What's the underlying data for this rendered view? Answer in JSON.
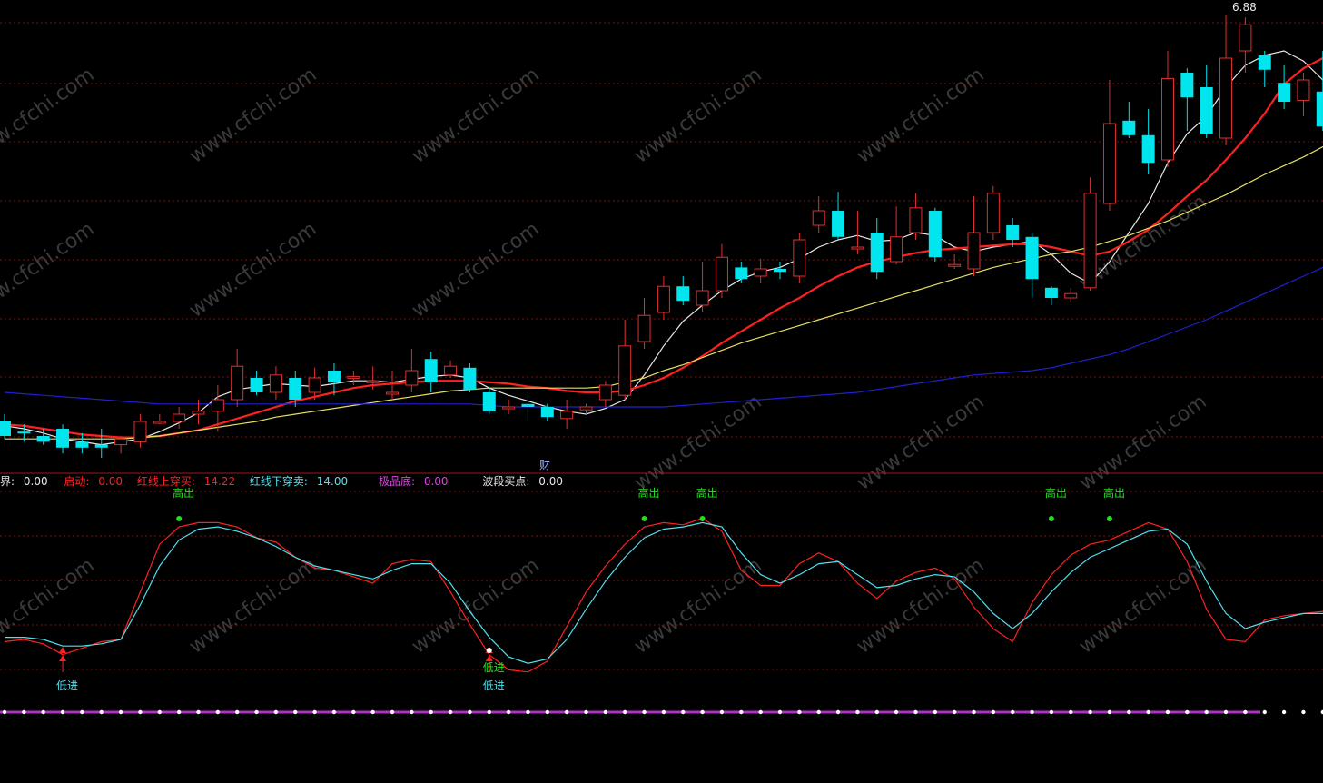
{
  "colors": {
    "background": "#000000",
    "up": "#e03030",
    "down": "#00e5ee",
    "ma_white": "#e8e8e8",
    "ma_red": "#ff2020",
    "ma_yellow": "#e6e060",
    "ma_blue": "#2020d0",
    "grid": "#7a1010",
    "osc_red": "#ff2020",
    "osc_cyan": "#50e0f0",
    "purple": "#b030c8"
  },
  "watermark": "www.cfchi.com",
  "price_label": "6.88",
  "cai_label": "财",
  "legend": {
    "jie": {
      "label": "界:",
      "value": "0.00"
    },
    "qidong": {
      "label": "启动:",
      "value": "0.00"
    },
    "hong_shang": {
      "label": "红线上穿买:",
      "value": "14.22"
    },
    "hong_xia": {
      "label": "红线下穿卖:",
      "value": "14.00"
    },
    "jipin": {
      "label": "极品底:",
      "value": "0.00"
    },
    "boduan": {
      "label": "波段买点:",
      "value": "0.00"
    }
  },
  "signal_labels": {
    "low": "低进",
    "high": "高出"
  },
  "chart_data": [
    {
      "type": "candlestick",
      "ylim": [
        3.0,
        7.0
      ],
      "candles": [
        [
          4.0,
          3.9,
          4.05,
          3.88
        ],
        [
          3.93,
          3.92,
          3.98,
          3.86
        ],
        [
          3.9,
          3.86,
          3.95,
          3.84
        ],
        [
          3.95,
          3.82,
          3.98,
          3.78
        ],
        [
          3.86,
          3.82,
          3.92,
          3.78
        ],
        [
          3.84,
          3.82,
          3.95,
          3.75
        ],
        [
          3.84,
          3.88,
          3.9,
          3.78
        ],
        [
          3.86,
          4.0,
          4.05,
          3.82
        ],
        [
          4.0,
          4.0,
          4.05,
          3.98
        ],
        [
          4.0,
          4.05,
          4.1,
          3.95
        ],
        [
          4.05,
          4.07,
          4.15,
          3.98
        ],
        [
          4.07,
          4.15,
          4.25,
          3.93
        ],
        [
          4.15,
          4.38,
          4.5,
          4.1
        ],
        [
          4.3,
          4.2,
          4.35,
          4.18
        ],
        [
          4.2,
          4.32,
          4.38,
          4.15
        ],
        [
          4.3,
          4.15,
          4.35,
          4.1
        ],
        [
          4.2,
          4.3,
          4.37,
          4.15
        ],
        [
          4.35,
          4.27,
          4.4,
          4.18
        ],
        [
          4.3,
          4.31,
          4.35,
          4.25
        ],
        [
          4.28,
          4.28,
          4.38,
          4.22
        ],
        [
          4.2,
          4.2,
          4.35,
          4.15
        ],
        [
          4.25,
          4.35,
          4.5,
          4.2
        ],
        [
          4.43,
          4.27,
          4.48,
          4.2
        ],
        [
          4.32,
          4.38,
          4.42,
          4.3
        ],
        [
          4.37,
          4.22,
          4.4,
          4.2
        ],
        [
          4.2,
          4.07,
          4.23,
          4.05
        ],
        [
          4.1,
          4.1,
          4.15,
          4.05
        ],
        [
          4.12,
          4.1,
          4.2,
          4.0
        ],
        [
          4.1,
          4.03,
          4.12,
          4.0
        ],
        [
          4.02,
          4.07,
          4.15,
          3.95
        ],
        [
          4.08,
          4.1,
          4.12,
          4.05
        ],
        [
          4.15,
          4.25,
          4.28,
          4.1
        ],
        [
          4.18,
          4.52,
          4.7,
          4.15
        ],
        [
          4.55,
          4.73,
          4.85,
          4.5
        ],
        [
          4.75,
          4.93,
          5.0,
          4.7
        ],
        [
          4.93,
          4.83,
          5.0,
          4.8
        ],
        [
          4.8,
          4.9,
          5.1,
          4.75
        ],
        [
          4.9,
          5.13,
          5.22,
          4.85
        ],
        [
          5.06,
          4.98,
          5.1,
          4.95
        ],
        [
          5.0,
          5.05,
          5.12,
          4.95
        ],
        [
          5.05,
          5.03,
          5.1,
          4.98
        ],
        [
          5.0,
          5.25,
          5.3,
          4.95
        ],
        [
          5.35,
          5.45,
          5.55,
          5.3
        ],
        [
          5.45,
          5.27,
          5.58,
          5.25
        ],
        [
          5.2,
          5.2,
          5.45,
          5.15
        ],
        [
          5.3,
          5.03,
          5.4,
          4.98
        ],
        [
          5.1,
          5.27,
          5.48,
          5.08
        ],
        [
          5.3,
          5.47,
          5.57,
          5.25
        ],
        [
          5.45,
          5.13,
          5.47,
          5.1
        ],
        [
          5.07,
          5.08,
          5.15,
          5.05
        ],
        [
          5.05,
          5.3,
          5.55,
          5.0
        ],
        [
          5.3,
          5.57,
          5.62,
          5.25
        ],
        [
          5.35,
          5.25,
          5.4,
          5.2
        ],
        [
          5.27,
          4.98,
          5.3,
          4.85
        ],
        [
          4.92,
          4.85,
          4.93,
          4.8
        ],
        [
          4.85,
          4.88,
          4.92,
          4.82
        ],
        [
          4.92,
          5.57,
          5.68,
          4.9
        ],
        [
          5.5,
          6.05,
          6.35,
          5.45
        ],
        [
          6.07,
          5.97,
          6.2,
          5.95
        ],
        [
          5.97,
          5.78,
          6.15,
          5.7
        ],
        [
          5.8,
          6.36,
          6.55,
          5.75
        ],
        [
          6.4,
          6.23,
          6.43,
          6.0
        ],
        [
          6.3,
          5.98,
          6.45,
          5.95
        ],
        [
          5.95,
          6.5,
          6.8,
          5.9
        ],
        [
          6.55,
          6.73,
          6.78,
          6.4
        ],
        [
          6.52,
          6.42,
          6.55,
          6.3
        ],
        [
          6.33,
          6.2,
          6.45,
          6.15
        ],
        [
          6.21,
          6.35,
          6.4,
          6.1
        ],
        [
          6.27,
          6.03,
          6.55,
          6.0
        ],
        [
          6.02,
          6.75,
          6.88,
          5.92
        ],
        [
          6.55,
          6.35,
          6.75,
          6.28
        ],
        [
          6.32,
          6.57,
          6.66,
          6.2
        ]
      ],
      "series": [
        {
          "name": "",
          "color_key": "ma_white",
          "values": [
            3.97,
            3.95,
            3.92,
            3.88,
            3.86,
            3.84,
            3.86,
            3.88,
            3.93,
            3.99,
            4.06,
            4.17,
            4.22,
            4.24,
            4.26,
            4.25,
            4.24,
            4.26,
            4.28,
            4.28,
            4.27,
            4.29,
            4.31,
            4.32,
            4.3,
            4.23,
            4.18,
            4.14,
            4.1,
            4.07,
            4.05,
            4.09,
            4.15,
            4.32,
            4.52,
            4.69,
            4.8,
            4.9,
            4.98,
            5.03,
            5.06,
            5.12,
            5.2,
            5.25,
            5.28,
            5.24,
            5.25,
            5.3,
            5.28,
            5.2,
            5.17,
            5.2,
            5.22,
            5.24,
            5.15,
            5.02,
            4.95,
            5.1,
            5.3,
            5.5,
            5.78,
            5.98,
            6.1,
            6.3,
            6.45,
            6.52,
            6.55,
            6.48,
            6.35,
            6.38,
            6.4,
            6.45
          ]
        },
        {
          "name": "",
          "color_key": "ma_red",
          "values": [
            3.98,
            3.97,
            3.95,
            3.93,
            3.91,
            3.9,
            3.89,
            3.89,
            3.9,
            3.92,
            3.94,
            3.98,
            4.02,
            4.06,
            4.1,
            4.14,
            4.17,
            4.2,
            4.23,
            4.25,
            4.26,
            4.27,
            4.28,
            4.28,
            4.28,
            4.27,
            4.26,
            4.24,
            4.23,
            4.21,
            4.2,
            4.2,
            4.21,
            4.25,
            4.3,
            4.37,
            4.45,
            4.54,
            4.62,
            4.7,
            4.78,
            4.85,
            4.93,
            5.0,
            5.06,
            5.1,
            5.13,
            5.16,
            5.18,
            5.19,
            5.2,
            5.21,
            5.22,
            5.22,
            5.2,
            5.17,
            5.14,
            5.17,
            5.24,
            5.32,
            5.43,
            5.55,
            5.66,
            5.8,
            5.95,
            6.12,
            6.32,
            6.43,
            6.5,
            6.5,
            6.5,
            6.53
          ]
        },
        {
          "name": "",
          "color_key": "ma_yellow",
          "values": [
            3.88,
            3.88,
            3.88,
            3.88,
            3.88,
            3.88,
            3.88,
            3.89,
            3.9,
            3.92,
            3.94,
            3.96,
            3.98,
            4.0,
            4.03,
            4.05,
            4.07,
            4.09,
            4.11,
            4.13,
            4.15,
            4.17,
            4.19,
            4.21,
            4.22,
            4.23,
            4.23,
            4.23,
            4.23,
            4.23,
            4.23,
            4.24,
            4.27,
            4.3,
            4.35,
            4.39,
            4.44,
            4.49,
            4.54,
            4.58,
            4.62,
            4.66,
            4.7,
            4.74,
            4.78,
            4.82,
            4.86,
            4.9,
            4.94,
            4.98,
            5.02,
            5.06,
            5.09,
            5.12,
            5.15,
            5.17,
            5.2,
            5.24,
            5.28,
            5.33,
            5.38,
            5.44,
            5.5,
            5.56,
            5.63,
            5.7,
            5.76,
            5.82,
            5.89,
            5.95,
            6.01,
            6.06
          ]
        },
        {
          "name": "",
          "color_key": "ma_blue",
          "values": [
            4.2,
            4.19,
            4.18,
            4.17,
            4.16,
            4.15,
            4.14,
            4.13,
            4.12,
            4.12,
            4.12,
            4.12,
            4.12,
            4.12,
            4.12,
            4.12,
            4.12,
            4.12,
            4.12,
            4.12,
            4.12,
            4.12,
            4.12,
            4.12,
            4.12,
            4.11,
            4.1,
            4.1,
            4.1,
            4.1,
            4.1,
            4.1,
            4.1,
            4.1,
            4.1,
            4.11,
            4.12,
            4.13,
            4.14,
            4.15,
            4.16,
            4.17,
            4.18,
            4.19,
            4.2,
            4.22,
            4.24,
            4.26,
            4.28,
            4.3,
            4.32,
            4.33,
            4.34,
            4.35,
            4.37,
            4.4,
            4.43,
            4.46,
            4.5,
            4.55,
            4.6,
            4.65,
            4.7,
            4.76,
            4.82,
            4.88,
            4.94,
            5.0,
            5.06,
            5.12,
            5.18,
            5.24
          ]
        }
      ]
    },
    {
      "type": "line",
      "ylim": [
        0,
        100
      ],
      "series": [
        {
          "name": "",
          "color_key": "osc_red",
          "values": [
            27,
            28,
            26,
            21,
            24,
            27,
            28,
            50,
            72,
            80,
            82,
            82,
            80,
            75,
            73,
            66,
            61,
            60,
            57,
            54,
            63,
            65,
            64,
            50,
            35,
            21,
            14,
            13,
            18,
            34,
            50,
            62,
            72,
            80,
            82,
            81,
            84,
            78,
            60,
            53,
            53,
            63,
            68,
            64,
            54,
            47,
            55,
            59,
            61,
            56,
            43,
            33,
            27,
            45,
            58,
            67,
            72,
            74,
            78,
            82,
            79,
            64,
            42,
            28,
            27,
            37,
            39,
            40,
            41,
            40,
            40,
            41
          ]
        },
        {
          "name": "",
          "color_key": "osc_cyan",
          "values": [
            29,
            29,
            28,
            25,
            25,
            26,
            28,
            44,
            62,
            74,
            79,
            80,
            78,
            75,
            71,
            66,
            62,
            60,
            58,
            56,
            60,
            63,
            63,
            54,
            41,
            29,
            20,
            17,
            19,
            28,
            42,
            55,
            66,
            75,
            79,
            80,
            82,
            80,
            68,
            58,
            54,
            58,
            63,
            64,
            58,
            52,
            53,
            56,
            58,
            57,
            50,
            40,
            33,
            40,
            50,
            59,
            66,
            70,
            74,
            78,
            79,
            72,
            55,
            40,
            33,
            36,
            38,
            40,
            40,
            40,
            40,
            41
          ]
        }
      ],
      "markers_high": [
        9,
        33,
        36,
        54,
        57
      ],
      "markers_low": [
        3,
        25
      ]
    }
  ]
}
